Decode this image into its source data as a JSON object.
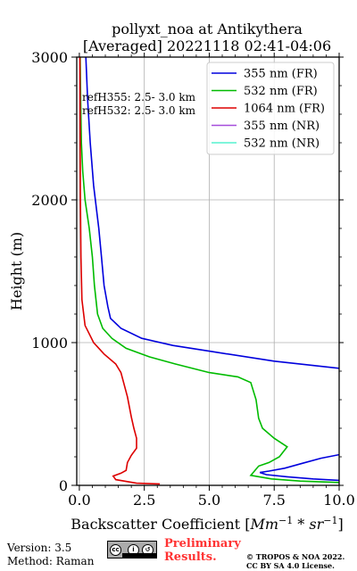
{
  "title_line1": "pollyxt_noa at Antikythera",
  "title_line2": "[Averaged] 20221118 02:41-04:06",
  "ref_labels": [
    "refH355:  2.5- 3.0 km",
    "refH532:  2.5- 3.0 km"
  ],
  "footer": {
    "version": "Version: 3.5",
    "method": "Method: Raman",
    "preliminary_1": "Preliminary",
    "preliminary_2": "Results.",
    "copyright_1": "© TROPOS & NOA 2022.",
    "copyright_2": "CC BY SA 4.0 License.",
    "cc_badge": "cc-by-sa-icon"
  },
  "colors": {
    "355_FR": "#0000dd",
    "532_FR": "#00bb00",
    "1064_FR": "#dd0000",
    "355_NR": "#a64ddb",
    "532_NR": "#55f2cf"
  },
  "chart_data": {
    "type": "line",
    "xlabel": "Backscatter Coefficient [Mm⁻¹ * sr⁻¹]",
    "ylabel": "Height (m)",
    "xlim": [
      -0.1,
      10.0
    ],
    "ylim": [
      0,
      3000
    ],
    "xticks": [
      "0.0",
      "2.5",
      "5.0",
      "7.5",
      "10.0"
    ],
    "yticks": [
      "0",
      "1000",
      "2000",
      "3000"
    ],
    "grid": true,
    "legend_position": "top-right",
    "series": [
      {
        "name": "355 nm (FR)",
        "color_key": "355_FR",
        "points": [
          [
            10.0,
            820
          ],
          [
            7.5,
            870
          ],
          [
            5.0,
            940
          ],
          [
            3.6,
            980
          ],
          [
            2.4,
            1030
          ],
          [
            1.6,
            1100
          ],
          [
            1.2,
            1170
          ],
          [
            1.1,
            1250
          ],
          [
            0.95,
            1400
          ],
          [
            0.85,
            1600
          ],
          [
            0.75,
            1800
          ],
          [
            0.55,
            2100
          ],
          [
            0.42,
            2400
          ],
          [
            0.32,
            2700
          ],
          [
            0.25,
            3000
          ]
        ]
      },
      {
        "name": "355 nm (FR)",
        "color_key": "355_FR",
        "points": [
          [
            10.0,
            215
          ],
          [
            9.3,
            190
          ],
          [
            8.6,
            155
          ],
          [
            7.9,
            120
          ],
          [
            7.3,
            100
          ],
          [
            6.95,
            90
          ],
          [
            7.2,
            75
          ],
          [
            8.0,
            60
          ],
          [
            9.0,
            45
          ],
          [
            10.0,
            35
          ]
        ]
      },
      {
        "name": "532 nm (FR)",
        "color_key": "532_FR",
        "points": [
          [
            10.0,
            20
          ],
          [
            8.5,
            30
          ],
          [
            7.4,
            45
          ],
          [
            6.6,
            70
          ],
          [
            6.9,
            135
          ],
          [
            7.3,
            160
          ],
          [
            7.7,
            200
          ],
          [
            8.0,
            270
          ],
          [
            7.5,
            330
          ],
          [
            7.05,
            400
          ],
          [
            6.9,
            470
          ],
          [
            6.8,
            600
          ],
          [
            6.6,
            720
          ],
          [
            6.1,
            760
          ],
          [
            5.0,
            790
          ],
          [
            3.7,
            850
          ],
          [
            2.7,
            900
          ],
          [
            1.8,
            960
          ],
          [
            1.25,
            1030
          ],
          [
            0.9,
            1100
          ],
          [
            0.7,
            1200
          ],
          [
            0.58,
            1400
          ],
          [
            0.5,
            1600
          ],
          [
            0.38,
            1800
          ],
          [
            0.22,
            2000
          ],
          [
            0.13,
            2200
          ],
          [
            0.08,
            2400
          ],
          [
            0.05,
            2700
          ],
          [
            0.03,
            3000
          ]
        ]
      },
      {
        "name": "1064 nm (FR)",
        "color_key": "1064_FR",
        "points": [
          [
            3.1,
            10
          ],
          [
            2.2,
            15
          ],
          [
            1.4,
            40
          ],
          [
            1.3,
            65
          ],
          [
            1.6,
            85
          ],
          [
            1.8,
            105
          ],
          [
            1.85,
            160
          ],
          [
            2.0,
            210
          ],
          [
            2.2,
            260
          ],
          [
            2.2,
            330
          ],
          [
            2.1,
            400
          ],
          [
            2.0,
            480
          ],
          [
            1.85,
            620
          ],
          [
            1.6,
            790
          ],
          [
            1.4,
            850
          ],
          [
            0.95,
            920
          ],
          [
            0.55,
            1000
          ],
          [
            0.22,
            1120
          ],
          [
            0.1,
            1300
          ],
          [
            0.06,
            1600
          ],
          [
            0.04,
            2000
          ],
          [
            0.03,
            2500
          ],
          [
            0.02,
            3000
          ]
        ]
      },
      {
        "name": "355 nm (NR)",
        "color_key": "355_NR",
        "points": []
      },
      {
        "name": "532 nm (NR)",
        "color_key": "532_NR",
        "points": []
      }
    ],
    "legend": [
      "355 nm (FR)",
      "532 nm (FR)",
      "1064 nm (FR)",
      "355 nm (NR)",
      "532 nm (NR)"
    ]
  }
}
